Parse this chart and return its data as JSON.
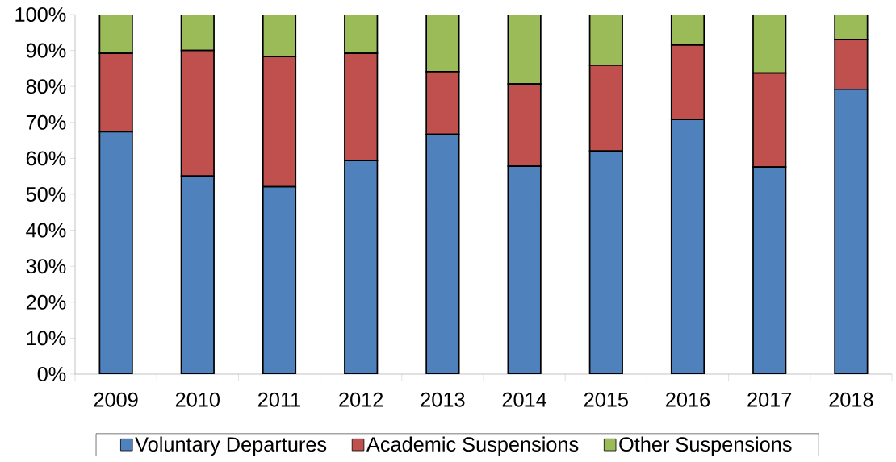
{
  "chart_data": {
    "type": "bar",
    "stacked": true,
    "categories": [
      "2009",
      "2010",
      "2011",
      "2012",
      "2013",
      "2014",
      "2015",
      "2016",
      "2017",
      "2018"
    ],
    "series": [
      {
        "name": "Voluntary Departures",
        "color": "#4f81bd",
        "values": [
          67.4,
          55.1,
          52.1,
          59.4,
          66.7,
          57.8,
          62.0,
          70.8,
          57.6,
          79.2
        ]
      },
      {
        "name": "Academic Suspensions",
        "color": "#c0504d",
        "values": [
          21.8,
          34.9,
          36.2,
          29.8,
          17.4,
          22.9,
          23.9,
          20.7,
          26.1,
          13.9
        ]
      },
      {
        "name": "Other Suspensions",
        "color": "#9bbb59",
        "values": [
          10.8,
          10.0,
          11.7,
          10.8,
          15.9,
          19.3,
          14.1,
          8.5,
          16.3,
          6.9
        ]
      }
    ],
    "ylim": [
      0,
      100
    ],
    "yticks": [
      {
        "value": 0,
        "label": "0%"
      },
      {
        "value": 10,
        "label": "10%"
      },
      {
        "value": 20,
        "label": "20%"
      },
      {
        "value": 30,
        "label": "30%"
      },
      {
        "value": 40,
        "label": "40%"
      },
      {
        "value": 50,
        "label": "50%"
      },
      {
        "value": 60,
        "label": "60%"
      },
      {
        "value": 70,
        "label": "70%"
      },
      {
        "value": 80,
        "label": "80%"
      },
      {
        "value": 90,
        "label": "90%"
      },
      {
        "value": 100,
        "label": "100%"
      }
    ],
    "legend": "bottom"
  }
}
